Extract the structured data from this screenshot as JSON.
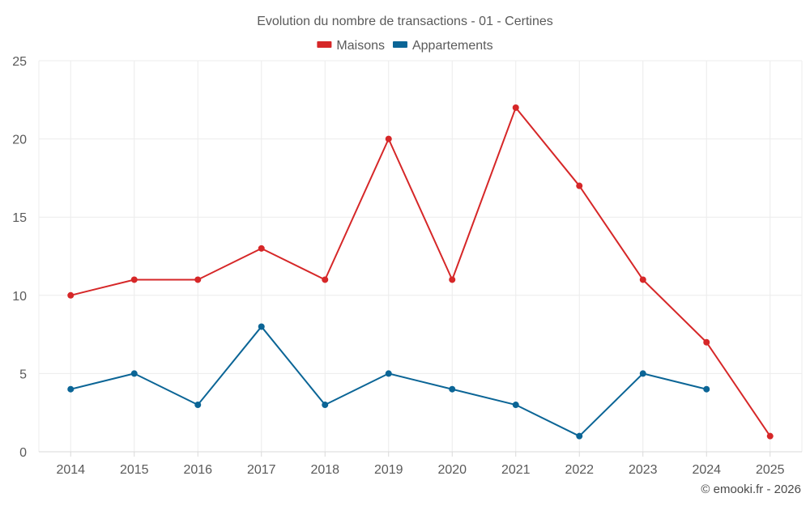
{
  "chart_data": {
    "type": "line",
    "title": "Evolution du nombre de transactions - 01 - Certines",
    "categories": [
      "2014",
      "2015",
      "2016",
      "2017",
      "2018",
      "2019",
      "2020",
      "2021",
      "2022",
      "2023",
      "2024",
      "2025"
    ],
    "series": [
      {
        "name": "Maisons",
        "color": "#d62728",
        "values": [
          10,
          11,
          11,
          13,
          11,
          20,
          11,
          22,
          17,
          11,
          7,
          1
        ]
      },
      {
        "name": "Appartements",
        "color": "#0b6596",
        "values": [
          4,
          5,
          3,
          8,
          3,
          5,
          4,
          3,
          1,
          5,
          4,
          null
        ]
      }
    ],
    "ylim": [
      0,
      25
    ],
    "yticks": [
      0,
      5,
      10,
      15,
      20,
      25
    ],
    "legend_position": "top-center",
    "grid": true,
    "credit": "© emooki.fr - 2026"
  }
}
